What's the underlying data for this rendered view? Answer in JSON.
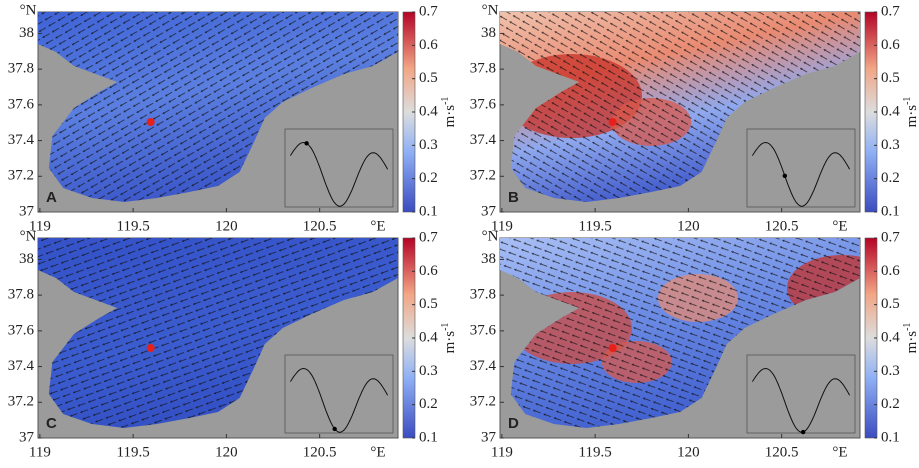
{
  "panels": [
    {
      "label": "A"
    },
    {
      "label": "B"
    },
    {
      "label": "C"
    },
    {
      "label": "D"
    }
  ],
  "xlim": [
    118.99,
    120.92
  ],
  "ylim": [
    37,
    38.12
  ],
  "xticks": [
    119,
    119.5,
    120,
    120.5
  ],
  "yticks": [
    37,
    37.2,
    37.4,
    37.6,
    37.8,
    38
  ],
  "lat_label": "°N",
  "lon_label": "°E",
  "colorbar": {
    "lim": [
      0.1,
      0.7
    ],
    "ticks": [
      0.1,
      0.2,
      0.3,
      0.4,
      0.5,
      0.6,
      0.7
    ],
    "unit": "m·s",
    "exponent": "-1"
  }
}
